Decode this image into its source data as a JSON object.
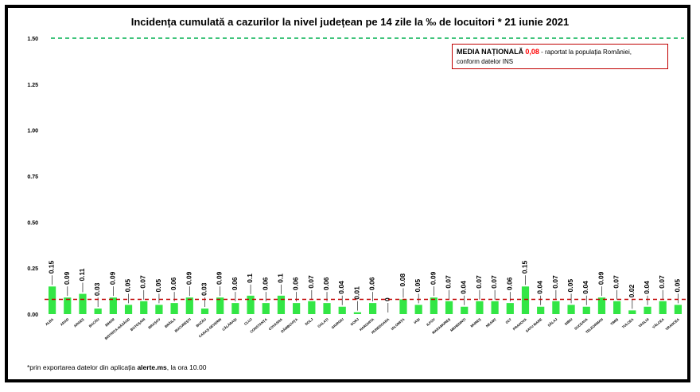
{
  "title": "Incidența cumulată a cazurilor la nivel județean pe 14 zile la ‰ de locuitori *  21 iunie 2021",
  "media_box": {
    "label": "MEDIA NAȚIONALĂ",
    "value": "0,08",
    "text1": " - raportat la populația României,",
    "text2": "conform datelor INS"
  },
  "note": {
    "prefix": "*prin exportarea datelor din aplicația ",
    "bold": "alerte.ms",
    "suffix": ", la ora 10.00"
  },
  "colors": {
    "bar": "#33e645",
    "reference_line": "#00b050",
    "national_line": "#c00000",
    "frame": "#000000"
  },
  "chart_data": {
    "type": "bar",
    "title": "Incidența cumulată a cazurilor la nivel județean pe 14 zile la ‰ de locuitori *  21 iunie 2021",
    "xlabel": "",
    "ylabel": "",
    "ylim": [
      0,
      1.5
    ],
    "yticks": [
      "0.00",
      "0.25",
      "0.50",
      "0.75",
      "1.00",
      "1.25",
      "1.50"
    ],
    "grid": false,
    "legend": "none",
    "categories": [
      "ALBA",
      "ARAD",
      "ARGEȘ",
      "BACĂU",
      "BIHOR",
      "BISTRIȚA-NĂSĂUD",
      "BOTOȘANI",
      "BRAȘOV",
      "BRĂILA",
      "BUCUREȘTI",
      "BUZĂU",
      "CARAȘ-SEVERIN",
      "CĂLĂRAȘI",
      "CLUJ",
      "CONSTANȚA",
      "COVASNA",
      "DÂMBOVIȚA",
      "DOLJ",
      "GALAȚI",
      "GIURGIU",
      "GORJ",
      "HARGHITA",
      "HUNEDOARA",
      "IALOMIȚA",
      "IAȘI",
      "ILFOV",
      "MARAMUREȘ",
      "MEHEDINȚI",
      "MUREȘ",
      "NEAMȚ",
      "OLT",
      "PRAHOVA",
      "SATU MARE",
      "SĂLAJ",
      "SIBIU",
      "SUCEAVA",
      "TELEORMAN",
      "TIMIȘ",
      "TULCEA",
      "VASLUI",
      "VÂLCEA",
      "VRANCEA"
    ],
    "values": [
      0.15,
      0.09,
      0.11,
      0.03,
      0.09,
      0.05,
      0.07,
      0.05,
      0.06,
      0.09,
      0.03,
      0.09,
      0.06,
      0.1,
      0.06,
      0.1,
      0.06,
      0.07,
      0.06,
      0.04,
      0.01,
      0.06,
      0,
      0.08,
      0.05,
      0.09,
      0.07,
      0.04,
      0.07,
      0.07,
      0.06,
      0.15,
      0.04,
      0.07,
      0.05,
      0.04,
      0.09,
      0.07,
      0.02,
      0.04,
      0.07,
      0.05
    ],
    "data_labels": [
      "0.15",
      "0.09",
      "0.11",
      "0.03",
      "0.09",
      "0.05",
      "0.07",
      "0.05",
      "0.06",
      "0.09",
      "0.03",
      "0.09",
      "0.06",
      "0.1",
      "0.06",
      "0.1",
      "0.06",
      "0.07",
      "0.06",
      "0.04",
      "0.01",
      "0.06",
      "0",
      "0.08",
      "0.05",
      "0.09",
      "0.07",
      "0.04",
      "0.07",
      "0.07",
      "0.06",
      "0.15",
      "0.04",
      "0.07",
      "0.05",
      "0.04",
      "0.09",
      "0.07",
      "0.02",
      "0.04",
      "0.07",
      "0.05"
    ],
    "reference_lines": [
      {
        "value": 1.5,
        "style": "dashed",
        "color": "#00b050"
      },
      {
        "value": 0.08,
        "style": "dashed",
        "color": "#c00000"
      }
    ]
  }
}
